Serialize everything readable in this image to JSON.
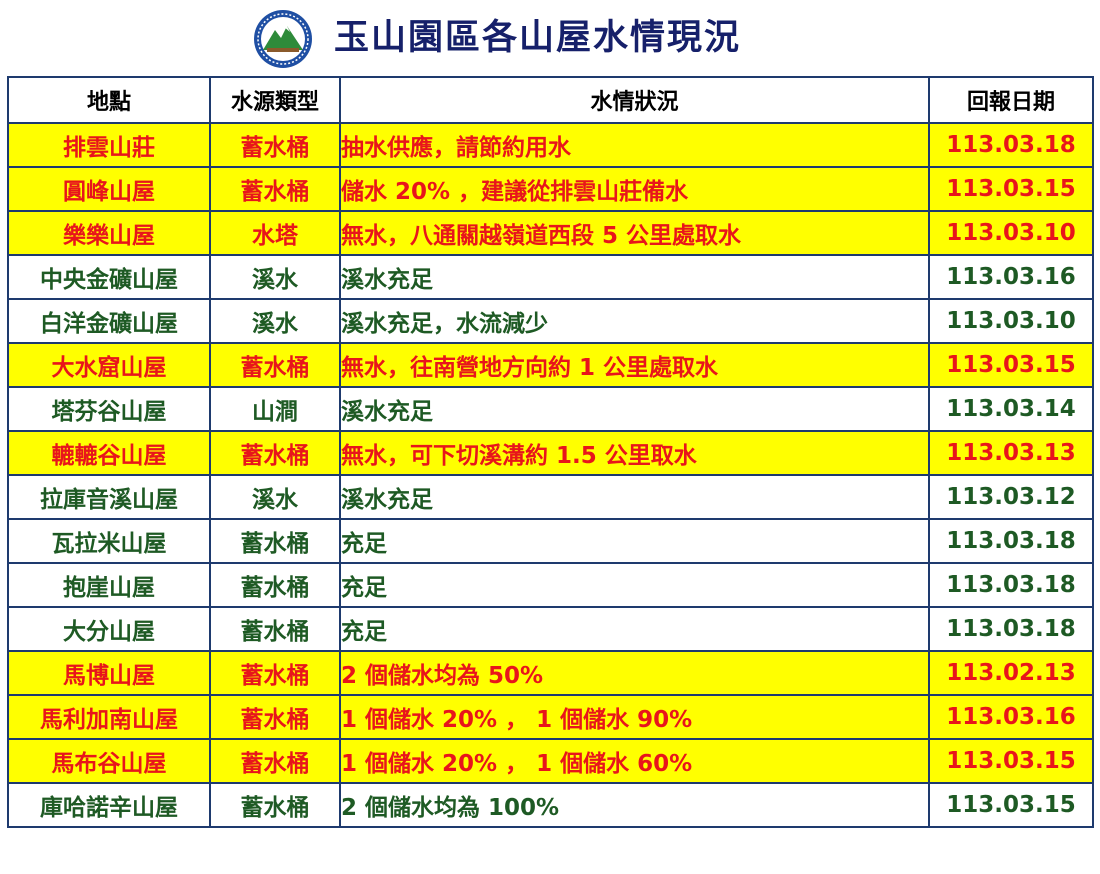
{
  "header": {
    "title": "玉山園區各山屋水情現況",
    "logo_icon": "yushan-national-park-emblem"
  },
  "colors": {
    "title": "#16206a",
    "alert_background": "#ffff00",
    "alert_text": "#e8151b",
    "normal_text": "#1e5a24",
    "border": "#1e3a6e"
  },
  "table": {
    "headers": [
      "地點",
      "水源類型",
      "水情狀況",
      "回報日期"
    ],
    "rows": [
      {
        "location": "排雲山莊",
        "source": "蓄水桶",
        "status": "抽水供應，請節約用水",
        "date": "113.03.18",
        "alert": true
      },
      {
        "location": "圓峰山屋",
        "source": "蓄水桶",
        "status": "儲水 20% ，建議從排雲山莊備水",
        "date": "113.03.15",
        "alert": true
      },
      {
        "location": "樂樂山屋",
        "source": "水塔",
        "status": "無水，八通關越嶺道西段 5 公里處取水",
        "date": "113.03.10",
        "alert": true
      },
      {
        "location": "中央金礦山屋",
        "source": "溪水",
        "status": "溪水充足",
        "date": "113.03.16",
        "alert": false
      },
      {
        "location": "白洋金礦山屋",
        "source": "溪水",
        "status": "溪水充足，水流減少",
        "date": "113.03.10",
        "alert": false
      },
      {
        "location": "大水窟山屋",
        "source": "蓄水桶",
        "status": "無水，往南營地方向約 1 公里處取水",
        "date": "113.03.15",
        "alert": true
      },
      {
        "location": "塔芬谷山屋",
        "source": "山澗",
        "status": "溪水充足",
        "date": "113.03.14",
        "alert": false
      },
      {
        "location": "轆轆谷山屋",
        "source": "蓄水桶",
        "status": "無水，可下切溪溝約 1.5 公里取水",
        "date": "113.03.13",
        "alert": true
      },
      {
        "location": "拉庫音溪山屋",
        "source": "溪水",
        "status": "溪水充足",
        "date": "113.03.12",
        "alert": false
      },
      {
        "location": "瓦拉米山屋",
        "source": "蓄水桶",
        "status": "充足",
        "date": "113.03.18",
        "alert": false
      },
      {
        "location": "抱崖山屋",
        "source": "蓄水桶",
        "status": "充足",
        "date": "113.03.18",
        "alert": false
      },
      {
        "location": "大分山屋",
        "source": "蓄水桶",
        "status": "充足",
        "date": "113.03.18",
        "alert": false
      },
      {
        "location": "馬博山屋",
        "source": "蓄水桶",
        "status": "2 個儲水均為 50%",
        "date": "113.02.13",
        "alert": true
      },
      {
        "location": "馬利加南山屋",
        "source": "蓄水桶",
        "status": "1 個儲水 20% ， 1 個儲水 90%",
        "date": "113.03.16",
        "alert": true
      },
      {
        "location": "馬布谷山屋",
        "source": "蓄水桶",
        "status": "1 個儲水 20% ， 1 個儲水 60%",
        "date": "113.03.15",
        "alert": true
      },
      {
        "location": "庫哈諾辛山屋",
        "source": "蓄水桶",
        "status": "2 個儲水均為 100%",
        "date": "113.03.15",
        "alert": false
      }
    ]
  }
}
